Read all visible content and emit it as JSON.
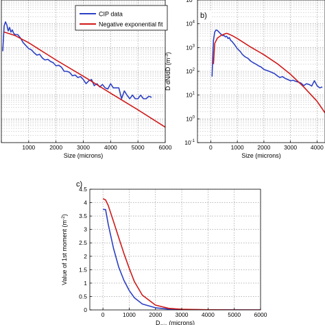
{
  "colors": {
    "cip": "#2b3fc4",
    "fit": "#d01818",
    "axis": "#000000",
    "grid": "#8a8a8a"
  },
  "chart_data": [
    {
      "id": "a",
      "type": "line",
      "panel_label": "",
      "xlabel": "Size (microns)",
      "ylabel": "",
      "x_scale": "linear",
      "y_scale": "log",
      "xlim": [
        0,
        6000
      ],
      "ylim": [
        0.1,
        100000
      ],
      "xticks": [
        0,
        1000,
        2000,
        3000,
        4000,
        5000,
        6000
      ],
      "xtick_labels": [
        "",
        "1000",
        "2000",
        "3000",
        "4000",
        "5000",
        "6000"
      ],
      "grid": true,
      "legend_position": "top-right",
      "series": [
        {
          "name": "CIP data",
          "color": "#2b3fc4",
          "points": [
            [
              50,
              700
            ],
            [
              100,
              8000
            ],
            [
              150,
              12000
            ],
            [
              200,
              9000
            ],
            [
              250,
              5000
            ],
            [
              300,
              7000
            ],
            [
              350,
              4500
            ],
            [
              400,
              5500
            ],
            [
              450,
              4000
            ],
            [
              500,
              3500
            ],
            [
              600,
              3500
            ],
            [
              700,
              2500
            ],
            [
              800,
              1600
            ],
            [
              900,
              1200
            ],
            [
              1000,
              900
            ],
            [
              1100,
              800
            ],
            [
              1200,
              600
            ],
            [
              1300,
              480
            ],
            [
              1400,
              520
            ],
            [
              1500,
              360
            ],
            [
              1600,
              300
            ],
            [
              1700,
              320
            ],
            [
              1800,
              260
            ],
            [
              1900,
              230
            ],
            [
              2000,
              170
            ],
            [
              2100,
              180
            ],
            [
              2200,
              150
            ],
            [
              2300,
              100
            ],
            [
              2400,
              100
            ],
            [
              2500,
              90
            ],
            [
              2600,
              65
            ],
            [
              2700,
              70
            ],
            [
              2800,
              55
            ],
            [
              2900,
              60
            ],
            [
              3000,
              45
            ],
            [
              3100,
              30
            ],
            [
              3200,
              40
            ],
            [
              3300,
              45
            ],
            [
              3400,
              25
            ],
            [
              3500,
              30
            ],
            [
              3600,
              22
            ],
            [
              3700,
              28
            ],
            [
              3800,
              20
            ],
            [
              3900,
              18
            ],
            [
              4000,
              30
            ],
            [
              4100,
              20
            ],
            [
              4200,
              20
            ],
            [
              4300,
              20
            ],
            [
              4400,
              7
            ],
            [
              4500,
              15
            ],
            [
              4600,
              10
            ],
            [
              4700,
              7
            ],
            [
              4800,
              10
            ],
            [
              4900,
              7
            ],
            [
              5000,
              7
            ],
            [
              5100,
              10
            ],
            [
              5200,
              7
            ],
            [
              5300,
              7
            ],
            [
              5400,
              9
            ],
            [
              5500,
              8
            ]
          ]
        },
        {
          "name": "Negative exponential fit",
          "color": "#d01818",
          "points": [
            [
              100,
              4500
            ],
            [
              500,
              3200
            ],
            [
              1000,
              1600
            ],
            [
              2000,
              300
            ],
            [
              3000,
              62
            ],
            [
              4000,
              12
            ],
            [
              5000,
              2.4
            ],
            [
              6000,
              0.45
            ]
          ]
        }
      ]
    },
    {
      "id": "b",
      "type": "line",
      "panel_label": "b)",
      "xlabel": "Size (microns)",
      "ylabel": "D dN/dD (m",
      "ylabel_sup": "-3",
      "ylabel_end": ")",
      "x_scale": "linear",
      "y_scale": "log",
      "xlim": [
        -500,
        4300
      ],
      "ylim": [
        0.1,
        100000
      ],
      "xticks": [
        0,
        1000,
        2000,
        3000,
        4000
      ],
      "xtick_labels": [
        "0",
        "1000",
        "2000",
        "3000",
        "4000"
      ],
      "yticks": [
        0.1,
        1,
        10,
        100,
        1000,
        10000,
        100000
      ],
      "ytick_base": "10",
      "ytick_exponents": [
        "-1",
        "0",
        "1",
        "2",
        "3",
        "4",
        "5"
      ],
      "grid": true,
      "series": [
        {
          "name": "",
          "color": "#2b3fc4",
          "points": [
            [
              50,
              60
            ],
            [
              70,
              300
            ],
            [
              100,
              2000
            ],
            [
              150,
              4500
            ],
            [
              200,
              5500
            ],
            [
              250,
              5200
            ],
            [
              300,
              4600
            ],
            [
              350,
              4000
            ],
            [
              400,
              3500
            ],
            [
              450,
              3200
            ],
            [
              500,
              3200
            ],
            [
              550,
              2800
            ],
            [
              600,
              3000
            ],
            [
              650,
              2400
            ],
            [
              700,
              2600
            ],
            [
              750,
              2000
            ],
            [
              800,
              1800
            ],
            [
              900,
              1300
            ],
            [
              1000,
              900
            ],
            [
              1100,
              700
            ],
            [
              1200,
              500
            ],
            [
              1300,
              400
            ],
            [
              1400,
              350
            ],
            [
              1500,
              270
            ],
            [
              1600,
              230
            ],
            [
              1700,
              200
            ],
            [
              1800,
              170
            ],
            [
              1900,
              150
            ],
            [
              2000,
              120
            ],
            [
              2100,
              110
            ],
            [
              2200,
              100
            ],
            [
              2300,
              90
            ],
            [
              2400,
              80
            ],
            [
              2500,
              65
            ],
            [
              2600,
              55
            ],
            [
              2700,
              60
            ],
            [
              2800,
              50
            ],
            [
              2900,
              45
            ],
            [
              3000,
              40
            ],
            [
              3100,
              42
            ],
            [
              3200,
              38
            ],
            [
              3300,
              35
            ],
            [
              3400,
              32
            ],
            [
              3500,
              25
            ],
            [
              3600,
              30
            ],
            [
              3700,
              28
            ],
            [
              3800,
              24
            ],
            [
              3900,
              40
            ],
            [
              4000,
              25
            ],
            [
              4100,
              20
            ],
            [
              4200,
              22
            ]
          ]
        },
        {
          "name": "",
          "color": "#d01818",
          "points": [
            [
              100,
              200
            ],
            [
              150,
              1500
            ],
            [
              250,
              2500
            ],
            [
              400,
              3300
            ],
            [
              600,
              4000
            ],
            [
              800,
              3200
            ],
            [
              1000,
              2400
            ],
            [
              1500,
              1050
            ],
            [
              2000,
              500
            ],
            [
              2500,
              210
            ],
            [
              3000,
              75
            ],
            [
              3500,
              22
            ],
            [
              4000,
              5.5
            ],
            [
              4300,
              1.8
            ]
          ]
        }
      ]
    },
    {
      "id": "c",
      "type": "line",
      "panel_label": "c)",
      "xlabel": "D",
      "xlabel_sub": "min",
      "xlabel_end": " (microns)",
      "ylabel": "Value of 1st moment (m",
      "ylabel_sup": "-2",
      "ylabel_end": ")",
      "x_scale": "linear",
      "y_scale": "linear",
      "xlim": [
        -500,
        6000
      ],
      "ylim": [
        0,
        4.5
      ],
      "xticks": [
        0,
        1000,
        2000,
        3000,
        4000,
        5000,
        6000
      ],
      "xtick_labels": [
        "0",
        "1000",
        "2000",
        "3000",
        "4000",
        "5000",
        "6000"
      ],
      "yticks": [
        0,
        0.5,
        1,
        1.5,
        2,
        2.5,
        3,
        3.5,
        4,
        4.5
      ],
      "ytick_labels": [
        "0",
        "0.5",
        "1",
        "1.5",
        "2",
        "2.5",
        "3",
        "3.5",
        "4",
        "4.5"
      ],
      "grid": true,
      "series": [
        {
          "name": "",
          "color": "#2b3fc4",
          "points": [
            [
              0,
              3.75
            ],
            [
              100,
              3.74
            ],
            [
              200,
              3.2
            ],
            [
              400,
              2.3
            ],
            [
              600,
              1.6
            ],
            [
              800,
              1.1
            ],
            [
              1000,
              0.72
            ],
            [
              1200,
              0.45
            ],
            [
              1500,
              0.22
            ],
            [
              2000,
              0.08
            ],
            [
              2500,
              0.03
            ],
            [
              3000,
              0.015
            ],
            [
              4000,
              0.005
            ],
            [
              5000,
              0.002
            ],
            [
              6000,
              0.001
            ]
          ]
        },
        {
          "name": "",
          "color": "#d01818",
          "points": [
            [
              0,
              4.15
            ],
            [
              100,
              4.1
            ],
            [
              200,
              3.9
            ],
            [
              400,
              3.3
            ],
            [
              600,
              2.7
            ],
            [
              800,
              2.1
            ],
            [
              1000,
              1.55
            ],
            [
              1200,
              1.05
            ],
            [
              1500,
              0.55
            ],
            [
              2000,
              0.18
            ],
            [
              2500,
              0.06
            ],
            [
              3000,
              0.025
            ],
            [
              4000,
              0.006
            ],
            [
              5000,
              0.001
            ],
            [
              6000,
              0.0
            ]
          ]
        }
      ]
    }
  ]
}
